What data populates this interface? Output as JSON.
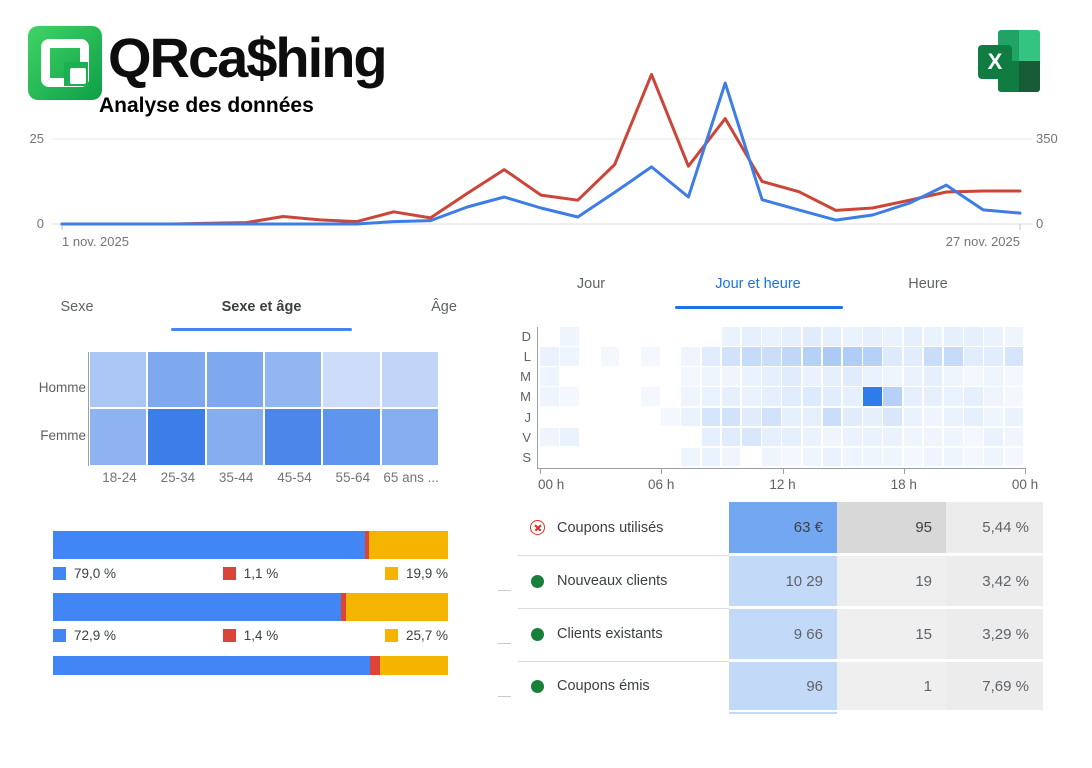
{
  "branding": {
    "logo_text": "QRca$hing",
    "subtitle": "Analyse des données",
    "excel_letter": "X"
  },
  "chart_data": {
    "type": "line",
    "x_axis": {
      "start_label": "1 nov. 2025",
      "end_label": "27 nov. 2025",
      "points": 27
    },
    "left_axis": {
      "bottom_label": "0",
      "top_label": "25",
      "gridline_value": 25
    },
    "right_axis": {
      "bottom_label": "0",
      "top_label": "350",
      "gridline_value": 350
    },
    "series": [
      {
        "name": "red",
        "color": "#cb4638",
        "axis": "left",
        "values": [
          0,
          0,
          0,
          0,
          0.2,
          0.4,
          2.2,
          1.2,
          0.7,
          3.6,
          1.8,
          9,
          16,
          8.5,
          7,
          17.5,
          44,
          17,
          31,
          12.5,
          9.5,
          4,
          4.7,
          7,
          9.4,
          9.7,
          9.7
        ]
      },
      {
        "name": "blue",
        "color": "#3d7de5",
        "axis": "right",
        "values": [
          0,
          0,
          0,
          0,
          0,
          0,
          0,
          0,
          0,
          10,
          14,
          70,
          111,
          66,
          29,
          130,
          235,
          111,
          580,
          100,
          58,
          16,
          37,
          86,
          160,
          58,
          45
        ]
      }
    ]
  },
  "demographics": {
    "tabs": [
      "Sexe",
      "Sexe et âge",
      "Âge"
    ],
    "active_tab": "Sexe et âge",
    "rows": [
      "Homme",
      "Femme"
    ],
    "cols": [
      "18-24",
      "25-34",
      "35-44",
      "45-54",
      "55-64",
      "65 ans ..."
    ],
    "cell_colors": [
      [
        "#a9c6f4",
        "#7fa9ef",
        "#7fa9ef",
        "#92b6f1",
        "#cdddf9",
        "#c0d5f7"
      ],
      [
        "#8fb3f0",
        "#3d7de9",
        "#85adf0",
        "#4d86eb",
        "#6095ed",
        "#87aef0"
      ]
    ]
  },
  "time_heatmap": {
    "tabs": [
      "Jour",
      "Jour et heure",
      "Heure"
    ],
    "active_tab": "Jour et heure",
    "day_labels": [
      "D",
      "L",
      "M",
      "M",
      "J",
      "V",
      "S"
    ],
    "hour_labels": [
      "00 h",
      "06 h",
      "12 h",
      "18 h",
      "00 h"
    ],
    "accent_color": "#2e7ce9",
    "matrix": [
      [
        0,
        8,
        0,
        0,
        0,
        0,
        0,
        0,
        0,
        10,
        12,
        10,
        12,
        15,
        12,
        10,
        12,
        10,
        12,
        10,
        12,
        12,
        10,
        8
      ],
      [
        10,
        8,
        0,
        5,
        0,
        5,
        0,
        8,
        14,
        22,
        28,
        25,
        30,
        35,
        40,
        38,
        35,
        16,
        14,
        26,
        28,
        14,
        14,
        20
      ],
      [
        8,
        0,
        0,
        0,
        0,
        0,
        0,
        5,
        8,
        8,
        10,
        12,
        15,
        10,
        12,
        15,
        10,
        8,
        10,
        12,
        8,
        5,
        8,
        5
      ],
      [
        8,
        5,
        0,
        0,
        0,
        5,
        0,
        8,
        10,
        12,
        10,
        12,
        14,
        16,
        14,
        12,
        100,
        35,
        12,
        12,
        10,
        12,
        8,
        5
      ],
      [
        0,
        0,
        0,
        0,
        0,
        0,
        5,
        10,
        20,
        22,
        15,
        22,
        12,
        12,
        25,
        15,
        12,
        18,
        10,
        8,
        10,
        12,
        8,
        10
      ],
      [
        8,
        10,
        0,
        0,
        0,
        0,
        0,
        0,
        12,
        15,
        18,
        12,
        12,
        10,
        8,
        10,
        10,
        10,
        8,
        8,
        8,
        5,
        10,
        8
      ],
      [
        0,
        0,
        0,
        0,
        0,
        0,
        0,
        8,
        10,
        8,
        0,
        8,
        5,
        8,
        10,
        8,
        8,
        8,
        5,
        8,
        8,
        5,
        8,
        5
      ]
    ]
  },
  "stacked_bars": {
    "colors": {
      "blue": "#4285f4",
      "red": "#db4437",
      "yellow": "#f4b400"
    },
    "bars": [
      {
        "segments": [
          79.0,
          1.1,
          19.9
        ],
        "legend": [
          "79,0 %",
          "1,1 %",
          "19,9 %"
        ]
      },
      {
        "segments": [
          72.9,
          1.4,
          25.7
        ],
        "legend": [
          "72,9 %",
          "1,4 %",
          "25,7 %"
        ]
      },
      {
        "segments": [
          80.3,
          2.6,
          17.1
        ],
        "legend": []
      }
    ]
  },
  "stats_table": {
    "cell_colors": {
      "value_strong": "#74a7f1",
      "value_light": "#c3d9f8",
      "count_strong": "#d8d8d8",
      "count_light": "#efefef",
      "percent_bg": "#ececec"
    },
    "rows": [
      {
        "icon": "cancel-icon",
        "label": "Coupons utilisés",
        "value": "63 €",
        "count": "95",
        "percent": "5,44 %"
      },
      {
        "icon": "green-dot-icon",
        "label": "Nouveaux clients",
        "value": "10 29",
        "count": "19",
        "percent": "3,42 %"
      },
      {
        "icon": "green-dot-icon",
        "label": "Clients existants",
        "value": "9 66",
        "count": "15",
        "percent": "3,29 %"
      },
      {
        "icon": "green-dot-icon",
        "label": "Coupons émis",
        "value": "96",
        "count": "1",
        "percent": "7,69 %"
      }
    ]
  }
}
